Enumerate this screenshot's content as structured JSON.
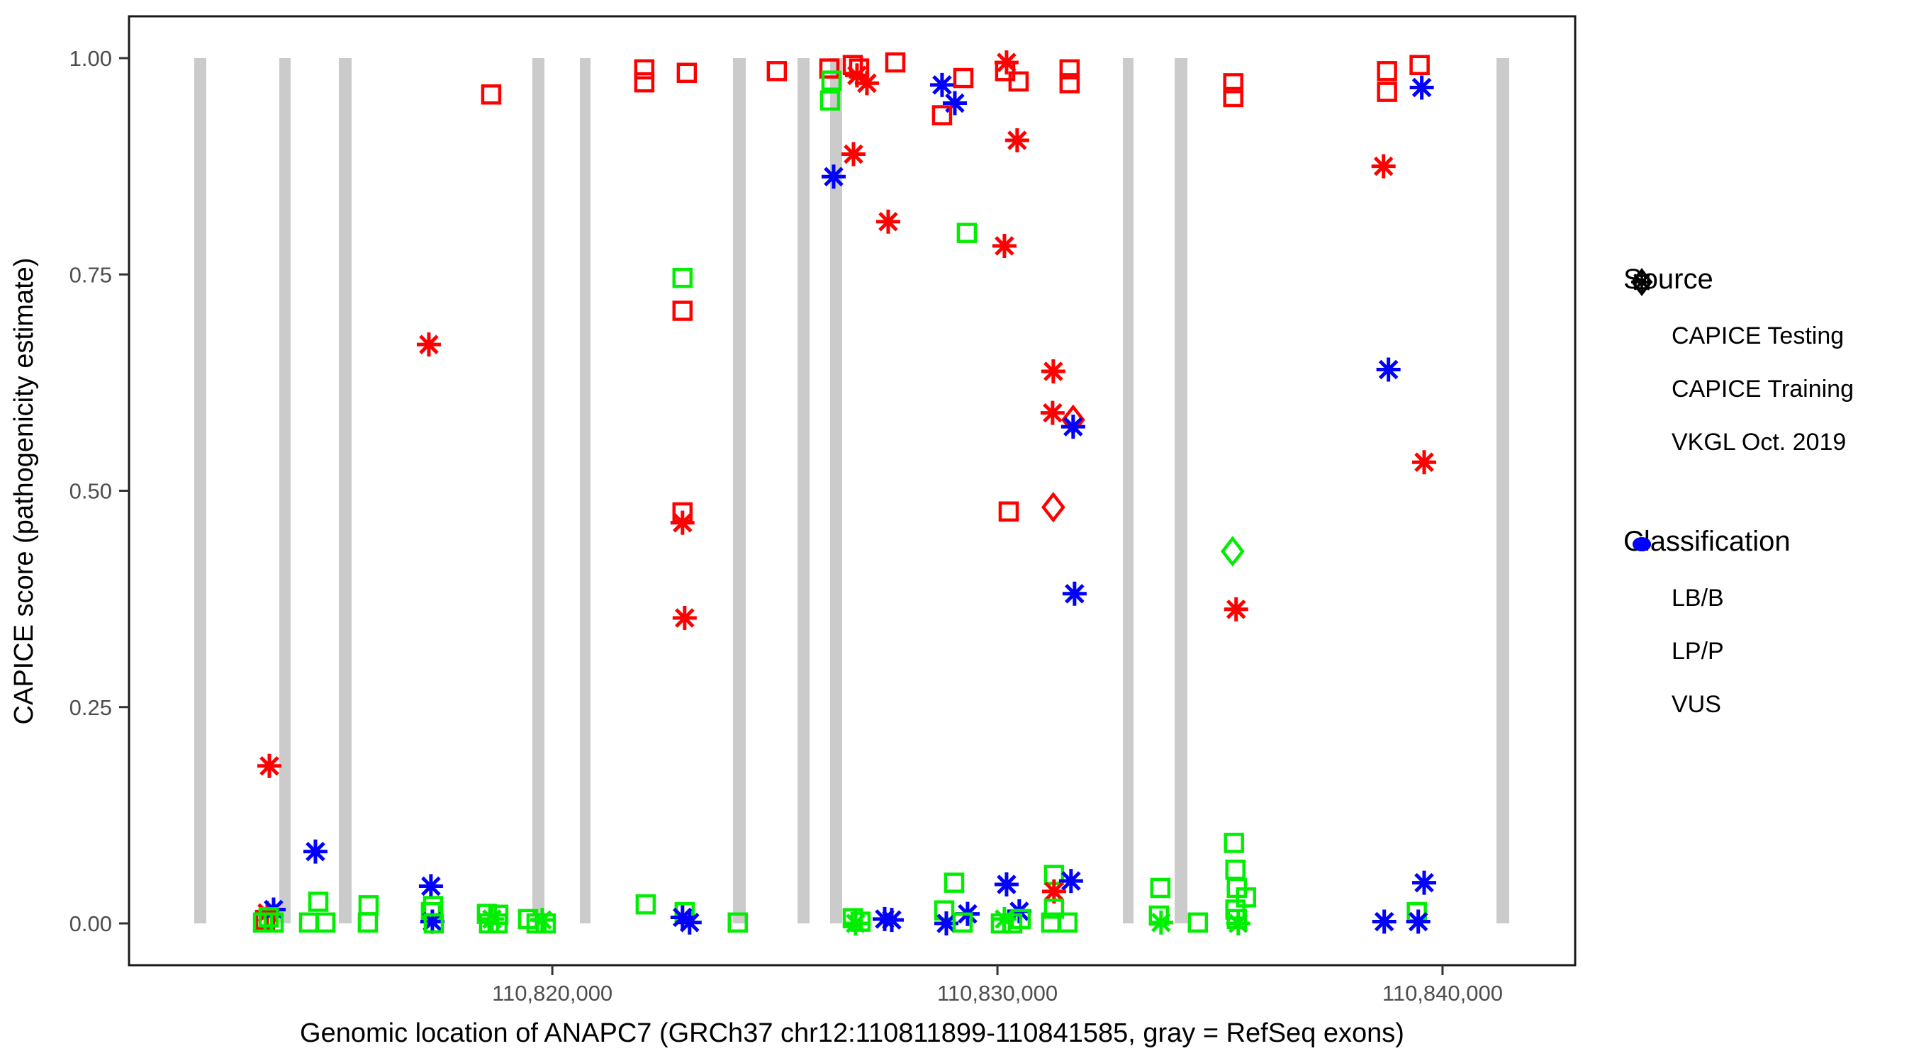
{
  "figure": {
    "kind": "scatter plot (ggplot style)",
    "background": "#ffffff"
  },
  "y_axis": {
    "title": "CAPICE score (pathogenicity estimate)"
  },
  "x_axis": {
    "title": "Genomic location of ANAPC7 (GRCh37 chr12:110811899-110841585, gray = RefSeq exons)"
  },
  "legend": {
    "source": {
      "title": "Source",
      "items": [
        {
          "label": "CAPICE Testing",
          "shape": "diamond"
        },
        {
          "label": "CAPICE Training",
          "shape": "square"
        },
        {
          "label": "VKGL Oct. 2019",
          "shape": "asterisk"
        }
      ]
    },
    "classification": {
      "title": "Classification",
      "items": [
        {
          "label": "LB/B",
          "color": "#00EE00"
        },
        {
          "label": "LP/P",
          "color": "#FF0000"
        },
        {
          "label": "VUS",
          "color": "#0000FF"
        }
      ]
    }
  },
  "chart_data": {
    "type": "scatter",
    "title": "",
    "xlabel": "Genomic location of ANAPC7 (GRCh37 chr12:110811899-110841585, gray = RefSeq exons)",
    "ylabel": "CAPICE score (pathogenicity estimate)",
    "xlim": [
      110810490,
      110842979
    ],
    "ylim": [
      0.0,
      1.0
    ],
    "grid": false,
    "legend_position": "right",
    "x_ticks": [
      {
        "value": 110820000,
        "label": "110,820,000"
      },
      {
        "value": 110830000,
        "label": "110,830,000"
      },
      {
        "value": 110840000,
        "label": "110,840,000"
      }
    ],
    "y_ticks": [
      {
        "value": 0.0,
        "label": "0.00"
      },
      {
        "value": 0.25,
        "label": "0.25"
      },
      {
        "value": 0.5,
        "label": "0.50"
      },
      {
        "value": 0.75,
        "label": "0.75"
      },
      {
        "value": 1.0,
        "label": "1.00"
      }
    ],
    "exon_color": "#CBCBCB",
    "exon_note": "gray vertical bars = RefSeq exons, drawn from score 0 to 1",
    "exons": [
      [
        110811955,
        110812226
      ],
      [
        110813866,
        110814121
      ],
      [
        110815204,
        110815491
      ],
      [
        110819552,
        110819823
      ],
      [
        110820619,
        110820858
      ],
      [
        110824059,
        110824345
      ],
      [
        110825508,
        110825779
      ],
      [
        110826240,
        110826511
      ],
      [
        110832819,
        110833058
      ],
      [
        110833981,
        110834268
      ],
      [
        110841212,
        110841498
      ]
    ],
    "encoding": {
      "shape_by": "source",
      "color_by": "classification",
      "shape_map": {
        "testing": "diamond",
        "training": "square",
        "vkgl": "asterisk"
      },
      "source_names": {
        "testing": "CAPICE Testing",
        "training": "CAPICE Training",
        "vkgl": "VKGL Oct. 2019"
      },
      "color_map": {
        "LB/B": "#00EE00",
        "LP/P": "#FF0000",
        "VUS": "#0000FF"
      }
    },
    "point_columns": [
      "genomic_position",
      "capice_score",
      "source",
      "classification"
    ],
    "points": [
      [
        110818627,
        0.958,
        "training",
        "LP/P"
      ],
      [
        110822066,
        0.987,
        "training",
        "LP/P"
      ],
      [
        110822066,
        0.972,
        "training",
        "LP/P"
      ],
      [
        110823022,
        0.983,
        "training",
        "LP/P"
      ],
      [
        110825044,
        0.985,
        "training",
        "LP/P"
      ],
      [
        110826224,
        0.988,
        "training",
        "LP/P"
      ],
      [
        110826272,
        0.974,
        "training",
        "LB/B"
      ],
      [
        110826240,
        0.951,
        "training",
        "LB/B"
      ],
      [
        110826750,
        0.992,
        "training",
        "LP/P"
      ],
      [
        110826893,
        0.988,
        "training",
        "LP/P"
      ],
      [
        110826845,
        0.98,
        "vkgl",
        "LP/P"
      ],
      [
        110827068,
        0.971,
        "vkgl",
        "LP/P"
      ],
      [
        110827705,
        0.995,
        "training",
        "LP/P"
      ],
      [
        110828756,
        0.969,
        "vkgl",
        "VUS"
      ],
      [
        110829234,
        0.977,
        "training",
        "LP/P"
      ],
      [
        110829043,
        0.948,
        "vkgl",
        "VUS"
      ],
      [
        110828756,
        0.934,
        "training",
        "LP/P"
      ],
      [
        110830205,
        0.995,
        "vkgl",
        "LP/P"
      ],
      [
        110830173,
        0.985,
        "training",
        "LP/P"
      ],
      [
        110830475,
        0.973,
        "training",
        "LP/P"
      ],
      [
        110831621,
        0.987,
        "training",
        "LP/P"
      ],
      [
        110831621,
        0.971,
        "training",
        "LP/P"
      ],
      [
        110830443,
        0.905,
        "vkgl",
        "LP/P"
      ],
      [
        110826766,
        0.889,
        "vkgl",
        "LP/P"
      ],
      [
        110835298,
        0.971,
        "training",
        "LP/P"
      ],
      [
        110835298,
        0.955,
        "training",
        "LP/P"
      ],
      [
        110838753,
        0.985,
        "training",
        "LP/P"
      ],
      [
        110838753,
        0.961,
        "training",
        "LP/P"
      ],
      [
        110839485,
        0.992,
        "training",
        "LP/P"
      ],
      [
        110839533,
        0.966,
        "vkgl",
        "VUS"
      ],
      [
        110826320,
        0.863,
        "vkgl",
        "VUS"
      ],
      [
        110817226,
        0.669,
        "vkgl",
        "LP/P"
      ],
      [
        110822925,
        0.746,
        "training",
        "LB/B"
      ],
      [
        110822925,
        0.708,
        "training",
        "LP/P"
      ],
      [
        110827546,
        0.811,
        "vkgl",
        "LP/P"
      ],
      [
        110829313,
        0.798,
        "training",
        "LB/B"
      ],
      [
        110830157,
        0.783,
        "vkgl",
        "LP/P"
      ],
      [
        110831255,
        0.638,
        "vkgl",
        "LP/P"
      ],
      [
        110838674,
        0.875,
        "vkgl",
        "LP/P"
      ],
      [
        110838785,
        0.64,
        "vkgl",
        "VUS"
      ],
      [
        110831239,
        0.59,
        "vkgl",
        "LP/P"
      ],
      [
        110831701,
        0.582,
        "testing",
        "LP/P"
      ],
      [
        110831701,
        0.574,
        "vkgl",
        "VUS"
      ],
      [
        110839587,
        0.533,
        "vkgl",
        "LP/P"
      ],
      [
        110822925,
        0.475,
        "training",
        "LP/P"
      ],
      [
        110822925,
        0.463,
        "vkgl",
        "LP/P"
      ],
      [
        110822973,
        0.353,
        "vkgl",
        "LP/P"
      ],
      [
        110830253,
        0.476,
        "training",
        "LP/P"
      ],
      [
        110831255,
        0.481,
        "testing",
        "LP/P"
      ],
      [
        110831733,
        0.381,
        "vkgl",
        "VUS"
      ],
      [
        110835283,
        0.43,
        "testing",
        "LB/B"
      ],
      [
        110835362,
        0.363,
        "vkgl",
        "LP/P"
      ],
      [
        110813643,
        0.182,
        "vkgl",
        "LP/P"
      ],
      [
        110814678,
        0.083,
        "vkgl",
        "VUS"
      ],
      [
        110813595,
        0.012,
        "vkgl",
        "LP/P"
      ],
      [
        110813738,
        0.016,
        "vkgl",
        "VUS"
      ],
      [
        110813547,
        0.004,
        "training",
        "LP/P"
      ],
      [
        110813500,
        0.001,
        "training",
        "LB/B"
      ],
      [
        110813738,
        0.001,
        "training",
        "LB/B"
      ],
      [
        110813627,
        0.007,
        "training",
        "LB/B"
      ],
      [
        110814742,
        0.025,
        "training",
        "LB/B"
      ],
      [
        110814535,
        0.001,
        "training",
        "LB/B"
      ],
      [
        110814901,
        0.001,
        "training",
        "LB/B"
      ],
      [
        110815872,
        0.021,
        "training",
        "LB/B"
      ],
      [
        110815856,
        0.001,
        "training",
        "LB/B"
      ],
      [
        110817273,
        0.043,
        "vkgl",
        "VUS"
      ],
      [
        110817321,
        0.02,
        "training",
        "LB/B"
      ],
      [
        110817273,
        0.013,
        "training",
        "LB/B"
      ],
      [
        110817305,
        0.002,
        "vkgl",
        "VUS"
      ],
      [
        110817337,
        0.0,
        "training",
        "LB/B"
      ],
      [
        110818531,
        0.011,
        "training",
        "LB/B"
      ],
      [
        110818786,
        0.01,
        "training",
        "LB/B"
      ],
      [
        110818579,
        0.0,
        "training",
        "LB/B"
      ],
      [
        110818770,
        0.0,
        "training",
        "LB/B"
      ],
      [
        110818643,
        0.005,
        "vkgl",
        "LB/B"
      ],
      [
        110819455,
        0.005,
        "training",
        "LB/B"
      ],
      [
        110819646,
        0.0,
        "training",
        "LB/B"
      ],
      [
        110819853,
        0.0,
        "training",
        "LB/B"
      ],
      [
        110819773,
        0.004,
        "vkgl",
        "LB/B"
      ],
      [
        110822098,
        0.022,
        "training",
        "LB/B"
      ],
      [
        110822973,
        0.013,
        "training",
        "LB/B"
      ],
      [
        110822925,
        0.007,
        "vkgl",
        "VUS"
      ],
      [
        110823084,
        0.001,
        "vkgl",
        "VUS"
      ],
      [
        110824166,
        0.001,
        "training",
        "LB/B"
      ],
      [
        110826750,
        0.006,
        "training",
        "LB/B"
      ],
      [
        110826925,
        0.002,
        "training",
        "LB/B"
      ],
      [
        110826813,
        0.0,
        "vkgl",
        "LB/B"
      ],
      [
        110827467,
        0.005,
        "vkgl",
        "VUS"
      ],
      [
        110827626,
        0.004,
        "vkgl",
        "VUS"
      ],
      [
        110829027,
        0.047,
        "training",
        "LB/B"
      ],
      [
        110828804,
        0.015,
        "training",
        "LB/B"
      ],
      [
        110828852,
        0.0,
        "vkgl",
        "VUS"
      ],
      [
        110829329,
        0.011,
        "vkgl",
        "VUS"
      ],
      [
        110829218,
        0.001,
        "training",
        "LB/B"
      ],
      [
        110830205,
        0.045,
        "vkgl",
        "VUS"
      ],
      [
        110830491,
        0.014,
        "vkgl",
        "VUS"
      ],
      [
        110830157,
        0.005,
        "vkgl",
        "LB/B"
      ],
      [
        110830078,
        0.0,
        "training",
        "LB/B"
      ],
      [
        110830332,
        0.0,
        "training",
        "LB/B"
      ],
      [
        110830523,
        0.005,
        "training",
        "LB/B"
      ],
      [
        110831271,
        0.056,
        "training",
        "LB/B"
      ],
      [
        110831653,
        0.049,
        "vkgl",
        "VUS"
      ],
      [
        110831271,
        0.037,
        "vkgl",
        "LP/P"
      ],
      [
        110831271,
        0.017,
        "training",
        "LB/B"
      ],
      [
        110831207,
        0.001,
        "training",
        "LB/B"
      ],
      [
        110831573,
        0.001,
        "training",
        "LB/B"
      ],
      [
        110833660,
        0.041,
        "training",
        "LB/B"
      ],
      [
        110833628,
        0.009,
        "training",
        "LB/B"
      ],
      [
        110833676,
        0.001,
        "vkgl",
        "LB/B"
      ],
      [
        110834503,
        0.001,
        "training",
        "LB/B"
      ],
      [
        110835314,
        0.093,
        "training",
        "LB/B"
      ],
      [
        110835346,
        0.062,
        "training",
        "LB/B"
      ],
      [
        110835378,
        0.041,
        "training",
        "LB/B"
      ],
      [
        110835585,
        0.03,
        "training",
        "LB/B"
      ],
      [
        110835346,
        0.016,
        "training",
        "LB/B"
      ],
      [
        110835378,
        0.005,
        "training",
        "LB/B"
      ],
      [
        110835410,
        0.0,
        "vkgl",
        "LB/B"
      ],
      [
        110839587,
        0.047,
        "vkgl",
        "VUS"
      ],
      [
        110838690,
        0.002,
        "vkgl",
        "VUS"
      ],
      [
        110839422,
        0.013,
        "training",
        "LB/B"
      ],
      [
        110839454,
        0.002,
        "vkgl",
        "VUS"
      ]
    ]
  }
}
